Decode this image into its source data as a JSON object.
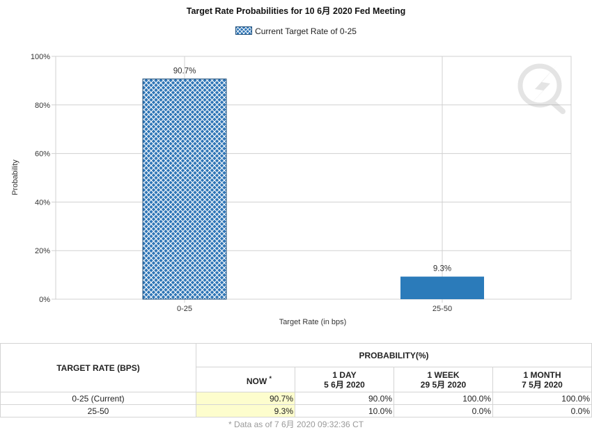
{
  "chart_data": {
    "type": "bar",
    "title": "Target Rate Probabilities for 10 6月 2020 Fed Meeting",
    "legend": "Current Target Rate of 0-25",
    "legend_placement": "top-center",
    "xlabel": "Target Rate (in bps)",
    "ylabel": "Probability",
    "categories": [
      "0-25",
      "25-50"
    ],
    "values": [
      90.7,
      9.3
    ],
    "value_labels": [
      "90.7%",
      "9.3%"
    ],
    "ylim": [
      0,
      100
    ],
    "y_ticks": [
      "0%",
      "20%",
      "40%",
      "60%",
      "80%",
      "100%"
    ],
    "grid": true,
    "colors": {
      "current_bar": "#2e75b6",
      "other_bar": "#2b7bba",
      "grid": "#d0d0d0",
      "now_highlight": "#fdfdcd"
    },
    "current_category_index": 0
  },
  "table": {
    "col_target": "TARGET RATE (BPS)",
    "col_prob": "PROBABILITY(%)",
    "now_label": "NOW",
    "now_mark": "*",
    "periods": [
      {
        "label": "1 DAY",
        "date": "5 6月 2020"
      },
      {
        "label": "1 WEEK",
        "date": "29 5月 2020"
      },
      {
        "label": "1 MONTH",
        "date": "7 5月 2020"
      }
    ],
    "rows": [
      {
        "rate": "0-25 (Current)",
        "now": "90.7%",
        "d1": "90.0%",
        "w1": "100.0%",
        "m1": "100.0%"
      },
      {
        "rate": "25-50",
        "now": "9.3%",
        "d1": "10.0%",
        "w1": "0.0%",
        "m1": "0.0%"
      }
    ]
  },
  "footnote": "* Data as of 7 6月 2020 09:32:36 CT",
  "watermark_icon": "lightning-q-icon"
}
